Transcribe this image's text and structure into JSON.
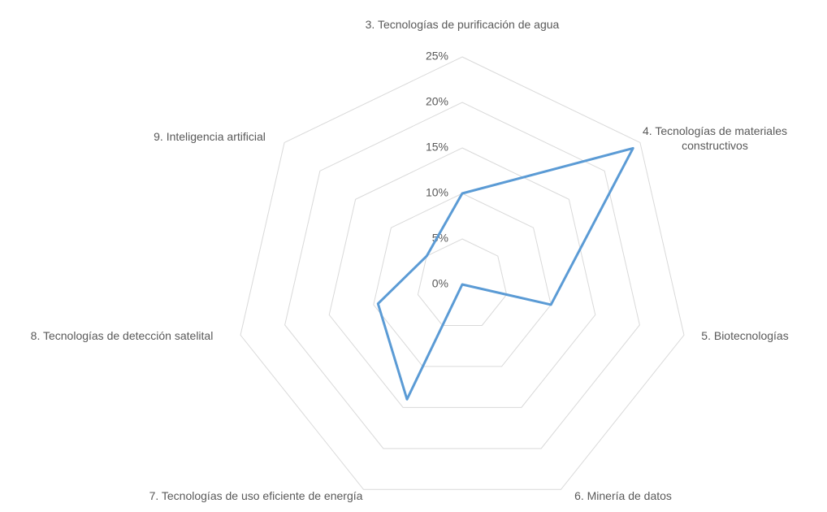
{
  "chart_data": {
    "type": "radar",
    "categories": [
      "3. Tecnologías de purificación de agua",
      "4. Tecnologías de materiales constructivos",
      "5. Biotecnologías",
      "6. Minería de datos",
      "7. Tecnologías de uso eficiente de energía",
      "8. Tecnologías de detección satelital",
      "9. Inteligencia artificial"
    ],
    "values": [
      10,
      24,
      10,
      0,
      14,
      9.5,
      5
    ],
    "color": "#5b9bd5",
    "ylim": [
      0,
      25
    ],
    "yticks": [
      {
        "value": 0,
        "label": "0%"
      },
      {
        "value": 5,
        "label": "5%"
      },
      {
        "value": 10,
        "label": "10%"
      },
      {
        "value": 15,
        "label": "15%"
      },
      {
        "value": 20,
        "label": "20%"
      },
      {
        "value": 25,
        "label": "25%"
      }
    ],
    "grid": true
  }
}
